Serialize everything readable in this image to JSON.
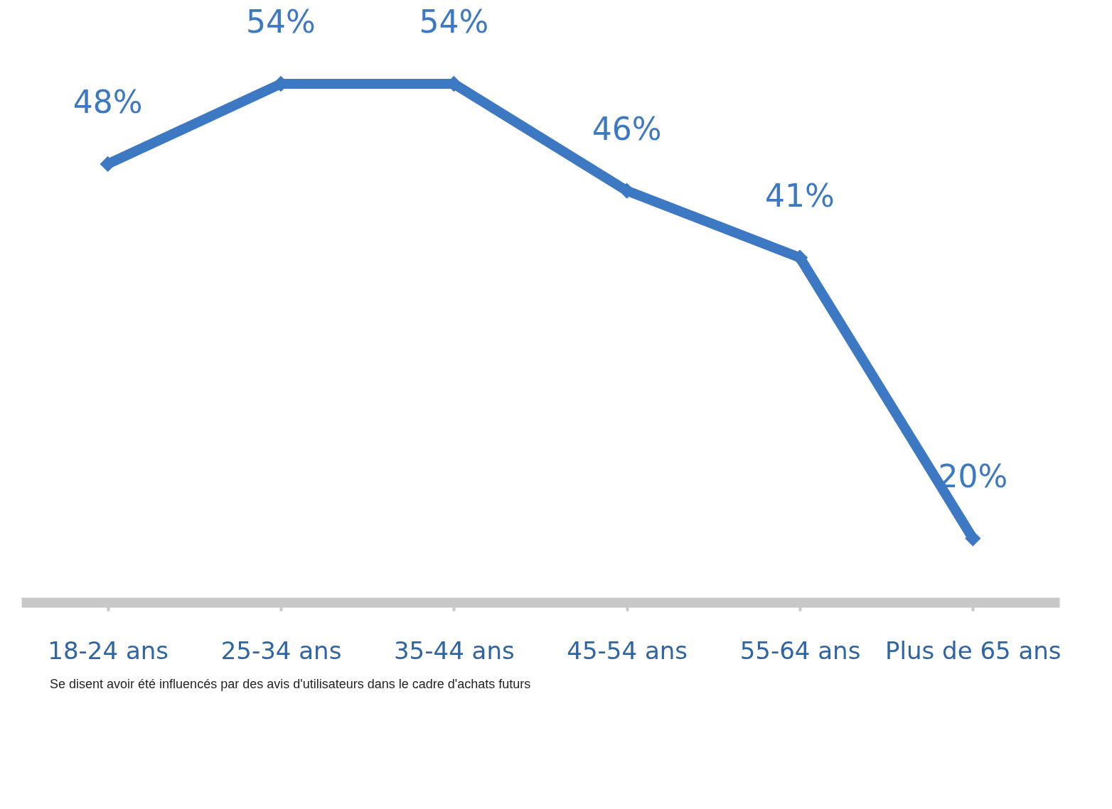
{
  "chart_data": {
    "type": "line",
    "categories": [
      "18-24 ans",
      "25-34 ans",
      "35-44 ans",
      "45-54 ans",
      "55-64 ans",
      "Plus de 65 ans"
    ],
    "series": [
      {
        "color": "#3d78c3",
        "values": [
          48,
          54,
          54,
          46,
          41,
          20
        ],
        "value_labels": [
          "48%",
          "54%",
          "54%",
          "46%",
          "41%",
          "20%"
        ]
      }
    ],
    "marker": "diamond",
    "line_style": "solid",
    "grid": false,
    "legend": false,
    "tick_labels": "x",
    "annotations": [
      "Se disent avoir été influencés par des avis d'utilisateurs dans le cadre d'achats futurs"
    ]
  }
}
